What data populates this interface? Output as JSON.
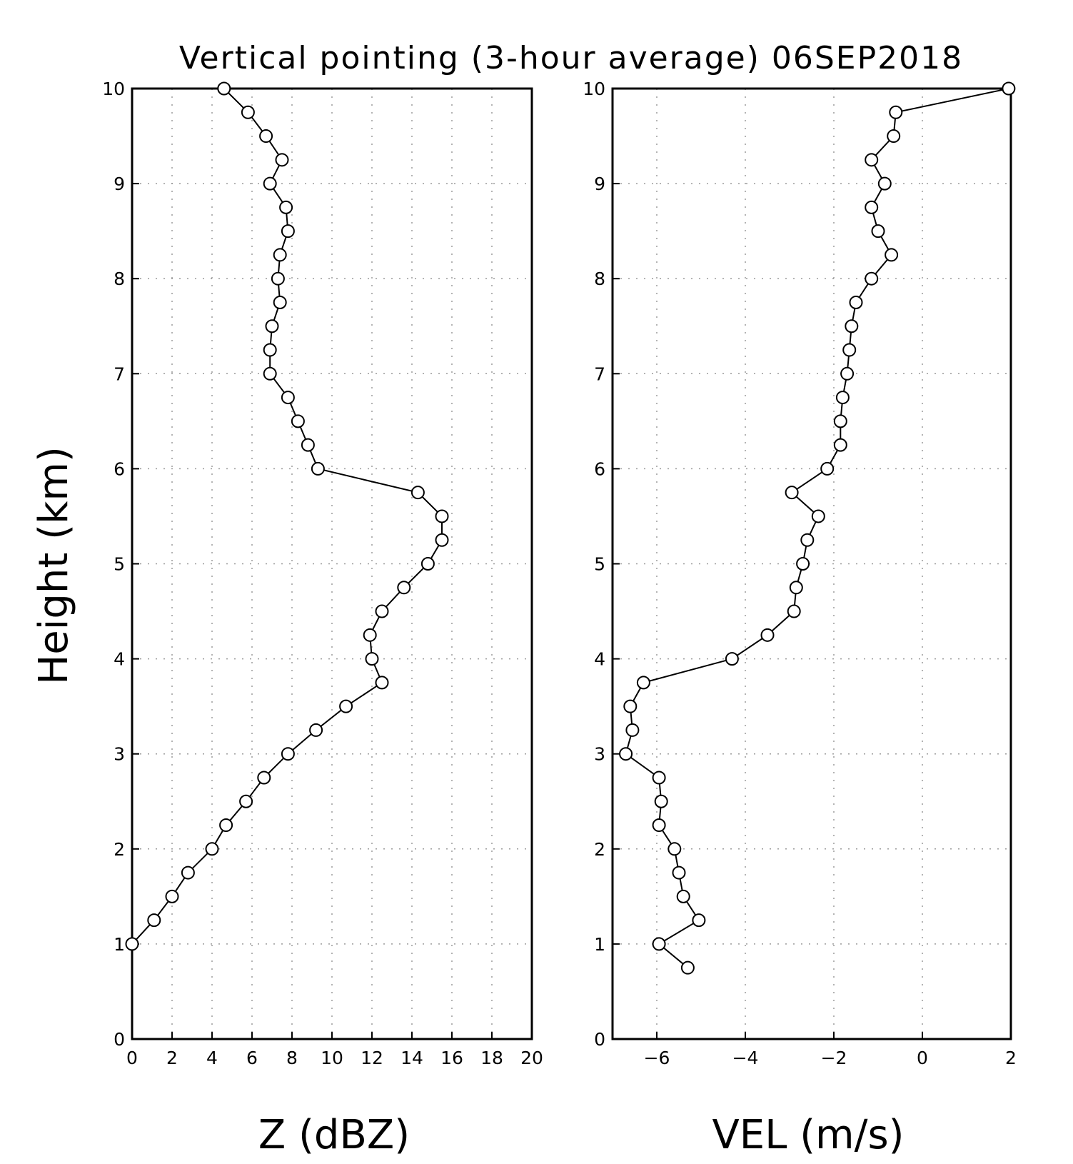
{
  "title": "Vertical pointing (3-hour average) 06SEP2018",
  "ylabel": "Height (km)",
  "chart_data": [
    {
      "type": "line",
      "name": "reflectivity-profile",
      "xlabel": "Z (dBZ)",
      "ylabel": "Height (km)",
      "xlim": [
        0,
        20
      ],
      "ylim": [
        0,
        10
      ],
      "xticks": [
        0,
        2,
        4,
        6,
        8,
        10,
        12,
        14,
        16,
        18,
        20
      ],
      "xtick_labels": [
        "0",
        "2",
        "4",
        "6",
        "8",
        "10",
        "12",
        "14",
        "16",
        "18",
        "20"
      ],
      "yticks": [
        0,
        1,
        2,
        3,
        4,
        5,
        6,
        7,
        8,
        9,
        10
      ],
      "ytick_labels": [
        "0",
        "1",
        "2",
        "3",
        "4",
        "5",
        "6",
        "7",
        "8",
        "9",
        "10"
      ],
      "grid": true,
      "marker": "open-circle",
      "points": [
        {
          "x": 0.0,
          "y": 1.0
        },
        {
          "x": 1.1,
          "y": 1.25
        },
        {
          "x": 2.0,
          "y": 1.5
        },
        {
          "x": 2.8,
          "y": 1.75
        },
        {
          "x": 4.0,
          "y": 2.0
        },
        {
          "x": 4.7,
          "y": 2.25
        },
        {
          "x": 5.7,
          "y": 2.5
        },
        {
          "x": 6.6,
          "y": 2.75
        },
        {
          "x": 7.8,
          "y": 3.0
        },
        {
          "x": 9.2,
          "y": 3.25
        },
        {
          "x": 10.7,
          "y": 3.5
        },
        {
          "x": 12.5,
          "y": 3.75
        },
        {
          "x": 12.0,
          "y": 4.0
        },
        {
          "x": 11.9,
          "y": 4.25
        },
        {
          "x": 12.5,
          "y": 4.5
        },
        {
          "x": 13.6,
          "y": 4.75
        },
        {
          "x": 14.8,
          "y": 5.0
        },
        {
          "x": 15.5,
          "y": 5.25
        },
        {
          "x": 15.5,
          "y": 5.5
        },
        {
          "x": 14.3,
          "y": 5.75
        },
        {
          "x": 9.3,
          "y": 6.0
        },
        {
          "x": 8.8,
          "y": 6.25
        },
        {
          "x": 8.3,
          "y": 6.5
        },
        {
          "x": 7.8,
          "y": 6.75
        },
        {
          "x": 6.9,
          "y": 7.0
        },
        {
          "x": 6.9,
          "y": 7.25
        },
        {
          "x": 7.0,
          "y": 7.5
        },
        {
          "x": 7.4,
          "y": 7.75
        },
        {
          "x": 7.3,
          "y": 8.0
        },
        {
          "x": 7.4,
          "y": 8.25
        },
        {
          "x": 7.8,
          "y": 8.5
        },
        {
          "x": 7.7,
          "y": 8.75
        },
        {
          "x": 6.9,
          "y": 9.0
        },
        {
          "x": 7.5,
          "y": 9.25
        },
        {
          "x": 6.7,
          "y": 9.5
        },
        {
          "x": 5.8,
          "y": 9.75
        },
        {
          "x": 4.6,
          "y": 10.0
        }
      ]
    },
    {
      "type": "line",
      "name": "velocity-profile",
      "xlabel": "VEL (m/s)",
      "ylabel": "Height (km)",
      "xlim": [
        -7,
        2
      ],
      "ylim": [
        0,
        10
      ],
      "xticks": [
        -6,
        -4,
        -2,
        0,
        2
      ],
      "xtick_labels": [
        "−6",
        "−4",
        "−2",
        "0",
        "2"
      ],
      "yticks": [
        0,
        1,
        2,
        3,
        4,
        5,
        6,
        7,
        8,
        9,
        10
      ],
      "ytick_labels": [
        "0",
        "1",
        "2",
        "3",
        "4",
        "5",
        "6",
        "7",
        "8",
        "9",
        "10"
      ],
      "grid": true,
      "marker": "open-circle",
      "points": [
        {
          "x": -5.3,
          "y": 0.75
        },
        {
          "x": -5.95,
          "y": 1.0
        },
        {
          "x": -5.05,
          "y": 1.25
        },
        {
          "x": -5.4,
          "y": 1.5
        },
        {
          "x": -5.5,
          "y": 1.75
        },
        {
          "x": -5.6,
          "y": 2.0
        },
        {
          "x": -5.95,
          "y": 2.25
        },
        {
          "x": -5.9,
          "y": 2.5
        },
        {
          "x": -5.95,
          "y": 2.75
        },
        {
          "x": -6.7,
          "y": 3.0
        },
        {
          "x": -6.55,
          "y": 3.25
        },
        {
          "x": -6.6,
          "y": 3.5
        },
        {
          "x": -6.3,
          "y": 3.75
        },
        {
          "x": -4.3,
          "y": 4.0
        },
        {
          "x": -3.5,
          "y": 4.25
        },
        {
          "x": -2.9,
          "y": 4.5
        },
        {
          "x": -2.85,
          "y": 4.75
        },
        {
          "x": -2.7,
          "y": 5.0
        },
        {
          "x": -2.6,
          "y": 5.25
        },
        {
          "x": -2.35,
          "y": 5.5
        },
        {
          "x": -2.95,
          "y": 5.75
        },
        {
          "x": -2.15,
          "y": 6.0
        },
        {
          "x": -1.85,
          "y": 6.25
        },
        {
          "x": -1.85,
          "y": 6.5
        },
        {
          "x": -1.8,
          "y": 6.75
        },
        {
          "x": -1.7,
          "y": 7.0
        },
        {
          "x": -1.65,
          "y": 7.25
        },
        {
          "x": -1.6,
          "y": 7.5
        },
        {
          "x": -1.5,
          "y": 7.75
        },
        {
          "x": -1.15,
          "y": 8.0
        },
        {
          "x": -0.7,
          "y": 8.25
        },
        {
          "x": -1.0,
          "y": 8.5
        },
        {
          "x": -1.15,
          "y": 8.75
        },
        {
          "x": -0.85,
          "y": 9.0
        },
        {
          "x": -1.15,
          "y": 9.25
        },
        {
          "x": -0.65,
          "y": 9.5
        },
        {
          "x": -0.6,
          "y": 9.75
        },
        {
          "x": 1.95,
          "y": 10.0
        }
      ]
    }
  ]
}
